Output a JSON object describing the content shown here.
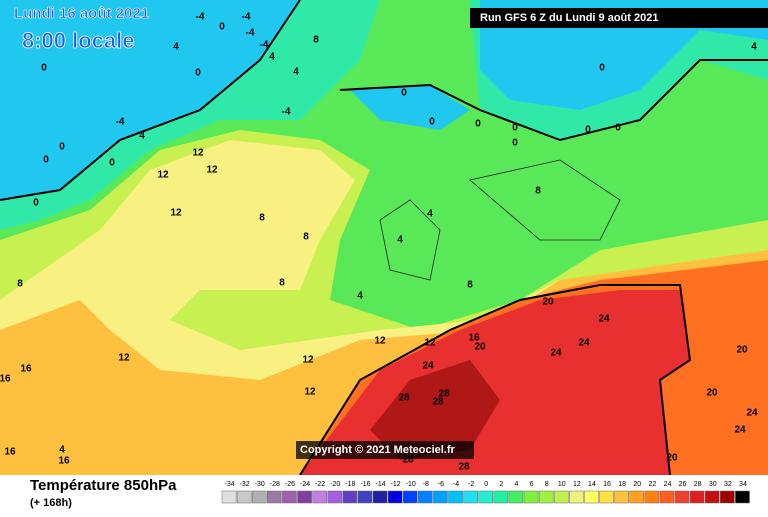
{
  "header": {
    "date": "Lundi 16 août 2021",
    "time": "8:00 locale",
    "run": "Run GFS 6 Z du Lundi 9 août 2021"
  },
  "copyright": "Copyright © 2021 Meteociel.fr",
  "footer": {
    "title": "Température 850hPa",
    "lead": "(+ 168h)"
  },
  "legend": {
    "values": [
      -34,
      -32,
      -30,
      -28,
      -26,
      -24,
      -22,
      -20,
      -18,
      -16,
      -14,
      -12,
      -10,
      -8,
      -6,
      -4,
      -2,
      0,
      2,
      4,
      6,
      8,
      10,
      12,
      14,
      16,
      18,
      20,
      22,
      24,
      26,
      28,
      30,
      32,
      34
    ],
    "colors": [
      "#e0e0e0",
      "#c8c8c8",
      "#b0b0b0",
      "#9a7aa0",
      "#a060b0",
      "#8040a0",
      "#c080e0",
      "#a060e0",
      "#6040c0",
      "#4040c0",
      "#2020a0",
      "#0000e0",
      "#0040ff",
      "#0080ff",
      "#00a0ff",
      "#00c0ff",
      "#20e0f0",
      "#20f0d0",
      "#20f0a0",
      "#40f060",
      "#80f040",
      "#a0f040",
      "#c0f050",
      "#f0f080",
      "#ffff60",
      "#ffe040",
      "#ffc040",
      "#ffa020",
      "#ff8010",
      "#ff6020",
      "#f04030",
      "#e02020",
      "#c01010",
      "#a00000",
      "#000000"
    ]
  },
  "contour_labels": [
    -4,
    0,
    -4,
    -4,
    -4,
    4,
    8,
    4,
    0,
    0,
    -4,
    4,
    0,
    0,
    0,
    0,
    -4,
    4,
    0,
    0,
    0,
    0,
    0,
    0,
    0,
    0,
    4,
    12,
    12,
    12,
    12,
    8,
    8,
    8,
    4,
    4,
    4,
    8,
    8,
    8,
    12,
    12,
    16,
    20,
    20,
    24,
    24,
    24,
    24,
    12,
    12,
    12,
    16,
    16,
    28,
    28,
    28,
    20,
    20,
    24,
    24,
    20,
    28,
    28,
    4,
    16,
    16
  ]
}
